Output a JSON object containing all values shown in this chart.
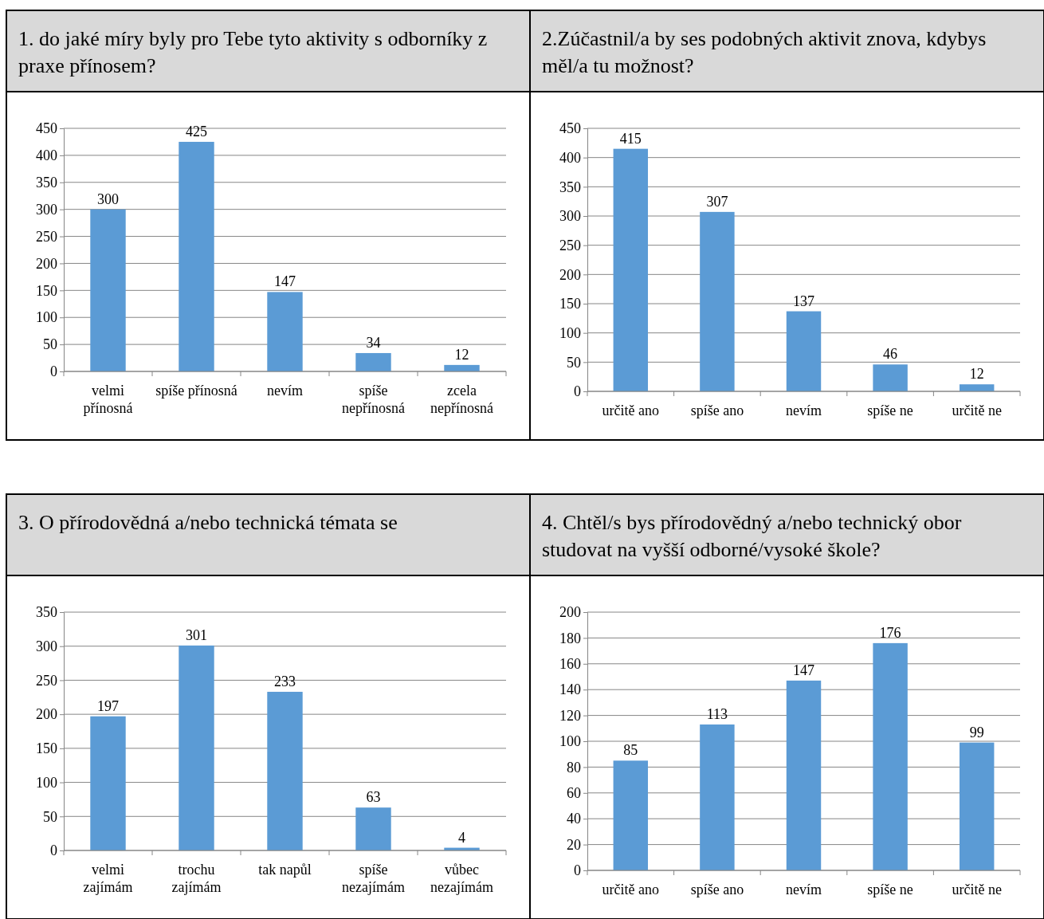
{
  "chart_data": [
    {
      "type": "bar",
      "title": "1. do jaké míry byly pro Tebe tyto aktivity s odborníky z praxe přínosem?",
      "categories": [
        "velmi přínosná",
        "spíše přínosná",
        "nevím",
        "spíše nepřínosná",
        "zcela nepřínosná"
      ],
      "values": [
        300,
        425,
        147,
        34,
        12
      ],
      "color": "#5b9bd5",
      "ylim": [
        0,
        450
      ],
      "yticks": [
        0,
        50,
        100,
        150,
        200,
        250,
        300,
        350,
        400,
        450
      ],
      "grid": "y",
      "data_labels": true
    },
    {
      "type": "bar",
      "title": "2.Zúčastnil/a by ses podobných aktivit znova, kdybys měl/a tu možnost?",
      "categories": [
        "určitě ano",
        "spíše ano",
        "nevím",
        "spíše ne",
        "určitě ne"
      ],
      "values": [
        415,
        307,
        137,
        46,
        12
      ],
      "color": "#5b9bd5",
      "ylim": [
        0,
        450
      ],
      "yticks": [
        0,
        50,
        100,
        150,
        200,
        250,
        300,
        350,
        400,
        450
      ],
      "grid": "y",
      "data_labels": true
    },
    {
      "type": "bar",
      "title": "3. O přírodovědná a/nebo technická témata se",
      "categories": [
        "velmi zajímám",
        "trochu zajímám",
        "tak napůl",
        "spíše nezajímám",
        "vůbec nezajímám"
      ],
      "values": [
        197,
        301,
        233,
        63,
        4
      ],
      "color": "#5b9bd5",
      "ylim": [
        0,
        350
      ],
      "yticks": [
        0,
        50,
        100,
        150,
        200,
        250,
        300,
        350
      ],
      "grid": "y",
      "data_labels": true
    },
    {
      "type": "bar",
      "title": "4. Chtěl/s bys přírodovědný a/nebo technický obor studovat na vyšší odborné/vysoké škole?",
      "categories": [
        "určitě ano",
        "spíše ano",
        "nevím",
        "spíše ne",
        "určitě ne"
      ],
      "values": [
        85,
        113,
        147,
        176,
        99
      ],
      "color": "#5b9bd5",
      "ylim": [
        0,
        200
      ],
      "yticks": [
        0,
        20,
        40,
        60,
        80,
        100,
        120,
        140,
        160,
        180,
        200
      ],
      "grid": "y",
      "data_labels": true
    }
  ]
}
